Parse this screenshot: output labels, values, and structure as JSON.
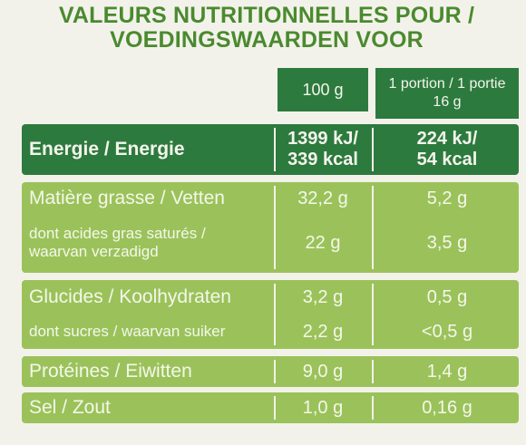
{
  "title": {
    "line1": "VALEURS NUTRITIONNELLES POUR /",
    "line2": "VOEDINGSWAARDEN VOOR"
  },
  "columns": {
    "per_100": "100 g",
    "per_portion_line1": "1 portion / 1 portie",
    "per_portion_line2": "16 g"
  },
  "rows": {
    "energy": {
      "label": "Energie / Energie",
      "v100_line1": "1399 kJ/",
      "v100_line2": "339 kcal",
      "vpor_line1": "224 kJ/",
      "vpor_line2": "54 kcal"
    },
    "fat": {
      "label": "Matière grasse / Vetten",
      "v100": "32,2 g",
      "vpor": "5,2 g"
    },
    "saturated": {
      "label_line1": "dont acides gras saturés /",
      "label_line2": "waarvan verzadigd",
      "v100": "22 g",
      "vpor": "3,5 g"
    },
    "carbs": {
      "label": "Glucides / Koolhydraten",
      "v100": "3,2 g",
      "vpor": "0,5 g"
    },
    "sugars": {
      "label": "dont sucres / waarvan suiker",
      "v100": "2,2 g",
      "vpor": "<0,5 g"
    },
    "protein": {
      "label": "Protéines / Eiwitten",
      "v100": "9,0 g",
      "vpor": "1,4 g"
    },
    "salt": {
      "label": "Sel / Zout",
      "v100": "1,0 g",
      "vpor": "0,16 g"
    }
  },
  "colors": {
    "dark_green": "#2d7a3e",
    "light_green": "#9bc25a",
    "title_green": "#4a8a2f",
    "background": "#f3f2ea"
  }
}
